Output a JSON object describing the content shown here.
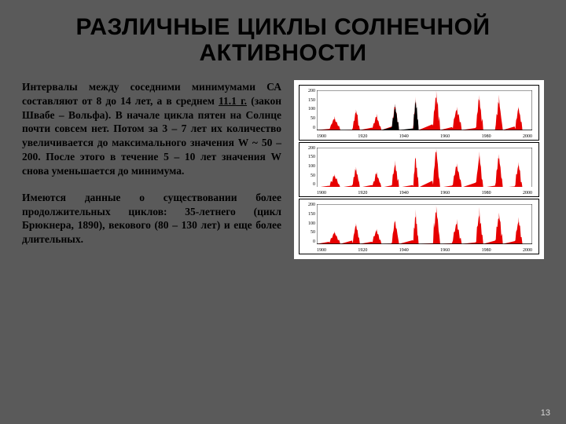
{
  "title": "РАЗЛИЧНЫЕ ЦИКЛЫ СОЛНЕЧНОЙ АКТИВНОСТИ",
  "paragraph1_prefix": "Интервалы между соседними минимумами СА составляют от 8 до 14 лет, а в среднем ",
  "paragraph1_underline": "11.1 г.",
  "paragraph1_suffix": " (закон Швабе – Вольфа). В начале цикла пятен на Солнце почти совсем нет. Потом за 3 – 7 лет их количество увеличивается до максимального значения W ~ 50 – 200. После этого в течение 5 – 10 лет значения W снова уменьшается до минимума.",
  "paragraph2": "Имеются данные о существовании более продолжительных циклов: 35-летнего (цикл Брюкнера, 1890), векового (80 – 130 лет) и еще более длительных.",
  "page_number": "13",
  "chart": {
    "type": "area",
    "background_color": "#ffffff",
    "grid_color": "#000000",
    "panels": 3,
    "ylim": [
      0,
      200
    ],
    "ytick_step": 50,
    "xlim": [
      1895,
      2005
    ],
    "xtick_step": 20,
    "y_labels": [
      "200",
      "150",
      "100",
      "50",
      "0"
    ],
    "x_labels": [
      "1900",
      "1920",
      "1940",
      "1960",
      "1980",
      "2000"
    ],
    "colors": {
      "red": "#e60000",
      "black": "#000000"
    },
    "cycles_x": [
      1895,
      1901,
      1907,
      1913,
      1917,
      1923,
      1928,
      1933,
      1937,
      1944,
      1947,
      1954,
      1958,
      1964,
      1969,
      1976,
      1980,
      1986,
      1990,
      1996,
      2000,
      2005
    ],
    "cycles_h": [
      0,
      60,
      0,
      100,
      0,
      70,
      0,
      120,
      0,
      150,
      0,
      190,
      0,
      110,
      0,
      160,
      0,
      155,
      0,
      118,
      0
    ],
    "panel_variants": [
      {
        "black_segments": [
          [
            6,
            10
          ]
        ]
      },
      {
        "black_segments": []
      },
      {
        "black_segments": []
      }
    ]
  }
}
